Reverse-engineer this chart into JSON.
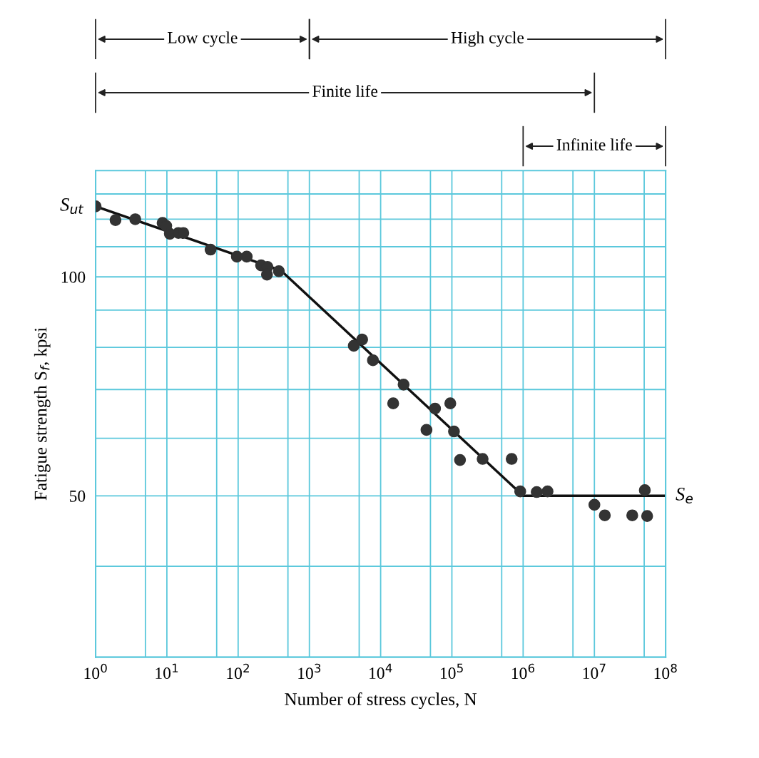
{
  "chart_data": {
    "type": "scatter",
    "xlabel": "Number of stress cycles, N",
    "ylabel": "Fatigue strength S$_{f}$, kpsi",
    "log": "xy",
    "grid": true,
    "legend": false,
    "marker": "circle",
    "xlim": [
      1,
      100000000
    ],
    "ylim": [
      30,
      140
    ],
    "xticks": [
      {
        "value": 1,
        "label": "10$^{0}$"
      },
      {
        "value": 5,
        "label": null
      },
      {
        "value": 10,
        "label": "10$^{1}$"
      },
      {
        "value": 50,
        "label": null
      },
      {
        "value": 100,
        "label": "10$^{2}$"
      },
      {
        "value": 500,
        "label": null
      },
      {
        "value": 1000,
        "label": "10$^{3}$"
      },
      {
        "value": 5000,
        "label": null
      },
      {
        "value": 10000,
        "label": "10$^{4}$"
      },
      {
        "value": 50000,
        "label": null
      },
      {
        "value": 100000,
        "label": "10$^{5}$"
      },
      {
        "value": 500000,
        "label": null
      },
      {
        "value": 1000000,
        "label": "10$^{6}$"
      },
      {
        "value": 5000000,
        "label": null
      },
      {
        "value": 10000000,
        "label": "10$^{7}$"
      },
      {
        "value": 50000000,
        "label": null
      },
      {
        "value": 100000000,
        "label": "10$^{8}$"
      }
    ],
    "yticks": [
      {
        "value": 30,
        "label": null
      },
      {
        "value": 40,
        "label": null
      },
      50,
      {
        "value": 60,
        "label": null
      },
      {
        "value": 70,
        "label": null
      },
      {
        "value": 80,
        "label": null
      },
      {
        "value": 90,
        "label": null
      },
      100,
      {
        "value": 110,
        "label": null
      },
      {
        "value": 120,
        "label": null
      },
      {
        "value": 130,
        "label": null
      },
      {
        "value": 140,
        "label": null
      }
    ],
    "series": [
      {
        "color": "#333333",
        "x": [
          1,
          1.9,
          3.6,
          8.7,
          9.8,
          11,
          14.5,
          17,
          41,
          96,
          132,
          210,
          258,
          254,
          373,
          4200,
          5500,
          7800,
          15000,
          21000,
          44000,
          58000,
          95000,
          107000,
          130000,
          270000,
          690000,
          910000,
          1550000,
          2200000,
          10000000,
          14000000,
          34000000,
          51000000,
          55000000
        ],
        "values": [
          125,
          119.7,
          120,
          118.6,
          117.5,
          114.6,
          114.9,
          114.9,
          109,
          106.6,
          106.6,
          103.7,
          103.2,
          100.7,
          101.8,
          80.4,
          82,
          76.8,
          67,
          71.1,
          61.6,
          65.9,
          67,
          61.3,
          56,
          56.2,
          56.2,
          50.7,
          50.6,
          50.7,
          48.6,
          47,
          47,
          50.9,
          46.9
        ]
      },
      {
        "type": "line",
        "color": "#111111",
        "marker": "none",
        "x": [
          1,
          400,
          1000000,
          100000000
        ],
        "values": [
          125,
          102,
          50,
          50
        ]
      }
    ],
    "annotations": [
      {
        "text": "S$_{ut}$",
        "x": 1,
        "y": 125
      },
      {
        "text": "S$_{e}$",
        "x": 100000000,
        "y": 50
      },
      "Low cycle",
      "High cycle",
      "Finite life",
      "Infinite life"
    ]
  }
}
